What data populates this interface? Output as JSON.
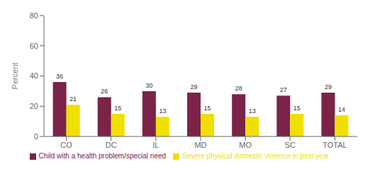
{
  "chart_data": {
    "type": "bar",
    "categories": [
      "CO",
      "DC",
      "IL",
      "MD",
      "MO",
      "SC",
      "TOTAL"
    ],
    "series": [
      {
        "name": "Child with a health problem/special need",
        "color": "#7B2348",
        "values": [
          36,
          26,
          30,
          29,
          28,
          27,
          29
        ]
      },
      {
        "name": "Severe physical domestic violence in past year",
        "color": "#F0E000",
        "values": [
          21,
          15,
          13,
          15,
          13,
          15,
          14
        ]
      }
    ],
    "ylabel": "Percent",
    "ylim": [
      0,
      80
    ],
    "yticks": [
      0,
      20,
      40,
      60,
      80
    ],
    "data_labels": true,
    "grid": false,
    "legend": "bottom"
  }
}
